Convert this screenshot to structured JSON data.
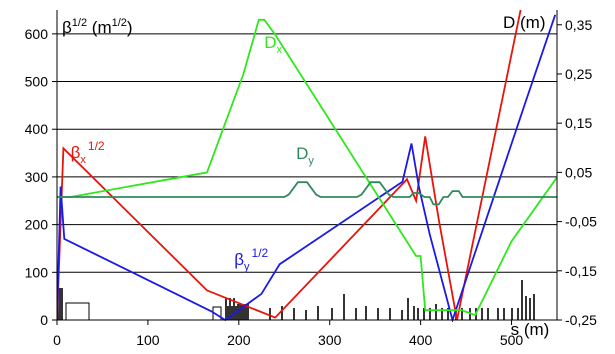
{
  "chart_data": {
    "type": "line",
    "title": "",
    "x_axis": {
      "label": "s (m)",
      "range": [
        0,
        550
      ],
      "ticks": [
        0,
        100,
        200,
        300,
        400,
        500
      ]
    },
    "y_axis_left": {
      "label_main": "β",
      "label_sup": "1/2",
      "label_unit": " (m",
      "label_unit_sup": "1/2",
      "label_close": ")",
      "range": [
        0,
        650
      ],
      "ticks": [
        0,
        100,
        200,
        300,
        400,
        500,
        600
      ]
    },
    "y_axis_right": {
      "label": "D (m)",
      "range": [
        -0.25,
        0.38
      ],
      "ticks": [
        "0,35",
        "0,25",
        "0,15",
        "0,05",
        "-0,05",
        "-0,15",
        "-0,25"
      ],
      "tick_values": [
        0.35,
        0.25,
        0.15,
        0.05,
        -0.05,
        -0.15,
        -0.25
      ]
    },
    "grid": "horizontal",
    "series": [
      {
        "name": "βx^1/2",
        "label_main": "β",
        "label_sub": "x",
        "label_sup": "1/2",
        "color": "#e8140c",
        "axis": "left",
        "x": [
          0,
          7,
          165,
          240,
          385,
          395,
          405,
          420,
          440,
          510
        ],
        "y": [
          0,
          360,
          62,
          5,
          295,
          250,
          385,
          210,
          0,
          650
        ]
      },
      {
        "name": "βy^1/2",
        "label_main": "β",
        "label_sub": "y",
        "label_sup": "1/2",
        "color": "#1a1ae6",
        "axis": "left",
        "x": [
          0,
          4,
          8,
          170,
          185,
          225,
          245,
          380,
          390,
          398,
          410,
          435,
          515,
          548
        ],
        "y": [
          0,
          280,
          170,
          18,
          0,
          55,
          117,
          290,
          370,
          280,
          180,
          0,
          455,
          640
        ]
      },
      {
        "name": "Dx",
        "label_main": "D",
        "label_sub": "x",
        "color": "#2ee81c",
        "axis": "right",
        "x": [
          0,
          15,
          165,
          205,
          222,
          228,
          240,
          395,
          400,
          405,
          415,
          445,
          460,
          500,
          550
        ],
        "y": [
          0,
          0,
          0.05,
          0.25,
          0.36,
          0.36,
          0.33,
          -0.12,
          -0.12,
          -0.23,
          -0.23,
          -0.23,
          -0.24,
          -0.09,
          0.04
        ]
      },
      {
        "name": "Dy",
        "label_main": "D",
        "label_sub": "y",
        "color": "#2e8a5c",
        "axis": "right",
        "x": [
          0,
          250,
          255,
          265,
          275,
          285,
          290,
          330,
          335,
          345,
          355,
          365,
          370,
          388,
          392,
          398,
          404,
          410,
          414,
          420,
          425,
          430,
          435,
          442,
          446,
          452,
          457,
          550
        ],
        "y": [
          0,
          0,
          0.005,
          0.03,
          0.03,
          0.005,
          0,
          0,
          0.005,
          0.03,
          0.03,
          0.005,
          0,
          0,
          0.008,
          0.008,
          0,
          0,
          -0.015,
          -0.015,
          0,
          0,
          0.012,
          0.012,
          0,
          0,
          0,
          0
        ]
      }
    ],
    "annotations": [
      {
        "main": "β",
        "sub": "x",
        "sup": "1/2",
        "color": "#e8140c",
        "x": 15,
        "y": 340
      },
      {
        "main": "β",
        "sub": "y",
        "sup": "1/2",
        "color": "#1a1ae6",
        "x": 195,
        "y": 115
      },
      {
        "main": "D",
        "sub": "x",
        "color": "#2ee81c",
        "x": 228,
        "y": 570
      },
      {
        "main": "D",
        "sub": "y",
        "color": "#2e8a5c",
        "x": 263,
        "y": 338
      }
    ]
  }
}
